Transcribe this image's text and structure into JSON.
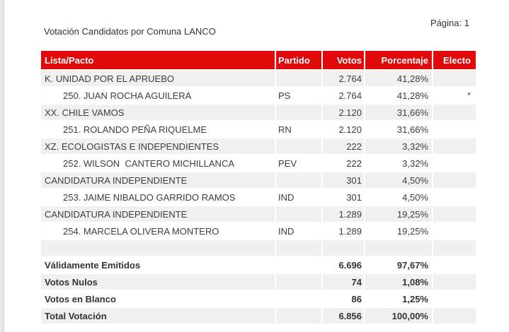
{
  "page": {
    "title": "Votación Candidatos por Comuna LANCO",
    "page_label": "Página: 1"
  },
  "colors": {
    "header_bg": "#e10a0a",
    "header_text": "#ffffff",
    "shaded_row_bg": "#f0f0f0",
    "body_text": "#3d3d3d"
  },
  "table": {
    "columns": [
      "Lista/Pacto",
      "Partido",
      "Votos",
      "Porcentaje",
      "Electo"
    ],
    "rows": [
      {
        "type": "lista",
        "lista_pacto": "K. UNIDAD POR EL APRUEBO",
        "partido": "",
        "votos": "2.764",
        "porcentaje": "41,28%",
        "electo": ""
      },
      {
        "type": "candidato",
        "lista_pacto": "250. JUAN ROCHA AGUILERA",
        "partido": "PS",
        "votos": "2.764",
        "porcentaje": "41,28%",
        "electo": "*"
      },
      {
        "type": "lista",
        "lista_pacto": "XX. CHILE VAMOS",
        "partido": "",
        "votos": "2.120",
        "porcentaje": "31,66%",
        "electo": ""
      },
      {
        "type": "candidato",
        "lista_pacto": "251. ROLANDO PEÑA RIQUELME",
        "partido": "RN",
        "votos": "2.120",
        "porcentaje": "31,66%",
        "electo": ""
      },
      {
        "type": "lista",
        "lista_pacto": "XZ. ECOLOGISTAS E INDEPENDIENTES",
        "partido": "",
        "votos": "222",
        "porcentaje": "3,32%",
        "electo": ""
      },
      {
        "type": "candidato",
        "lista_pacto": "252. WILSON  CANTERO MICHILLANCA",
        "partido": "PEV",
        "votos": "222",
        "porcentaje": "3,32%",
        "electo": ""
      },
      {
        "type": "lista",
        "lista_pacto": "CANDIDATURA INDEPENDIENTE",
        "partido": "",
        "votos": "301",
        "porcentaje": "4,50%",
        "electo": ""
      },
      {
        "type": "candidato",
        "lista_pacto": "253. JAIME NIBALDO GARRIDO RAMOS",
        "partido": "IND",
        "votos": "301",
        "porcentaje": "4,50%",
        "electo": ""
      },
      {
        "type": "lista",
        "lista_pacto": "CANDIDATURA INDEPENDIENTE",
        "partido": "",
        "votos": "1.289",
        "porcentaje": "19,25%",
        "electo": ""
      },
      {
        "type": "candidato",
        "lista_pacto": "254. MARCELA OLIVERA MONTERO",
        "partido": "IND",
        "votos": "1.289",
        "porcentaje": "19,25%",
        "electo": ""
      },
      {
        "type": "spacer",
        "lista_pacto": "",
        "partido": "",
        "votos": "",
        "porcentaje": "",
        "electo": ""
      },
      {
        "type": "summary",
        "lista_pacto": "Válidamente Emitidos",
        "partido": "",
        "votos": "6.696",
        "porcentaje": "97,67%",
        "electo": ""
      },
      {
        "type": "summary",
        "lista_pacto": "Votos Nulos",
        "partido": "",
        "votos": "74",
        "porcentaje": "1,08%",
        "electo": ""
      },
      {
        "type": "summary",
        "lista_pacto": "Votos en Blanco",
        "partido": "",
        "votos": "86",
        "porcentaje": "1,25%",
        "electo": ""
      },
      {
        "type": "summary",
        "lista_pacto": "Total Votación",
        "partido": "",
        "votos": "6.856",
        "porcentaje": "100,00%",
        "electo": ""
      }
    ]
  }
}
